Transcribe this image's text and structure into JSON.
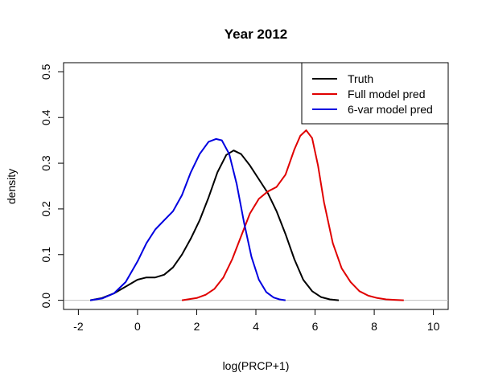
{
  "chart_data": {
    "type": "line",
    "title": "Year 2012",
    "xlabel": "log(PRCP+1)",
    "ylabel": "density",
    "xlim": [
      -2.5,
      10.5
    ],
    "ylim": [
      -0.02,
      0.52
    ],
    "xticks": [
      -2,
      0,
      2,
      4,
      6,
      8,
      10
    ],
    "xtick_labels": [
      "-2",
      "0",
      "2",
      "4",
      "6",
      "8",
      "10"
    ],
    "yticks": [
      0.0,
      0.1,
      0.2,
      0.3,
      0.4,
      0.5
    ],
    "ytick_labels": [
      "0.0",
      "0.1",
      "0.2",
      "0.3",
      "0.4",
      "0.5"
    ],
    "grid": false,
    "baseline": 0,
    "legend_position": "top-right",
    "series": [
      {
        "name": "Truth",
        "color": "#000000",
        "x": [
          -1.6,
          -1.2,
          -0.8,
          -0.4,
          0.0,
          0.3,
          0.6,
          0.9,
          1.2,
          1.5,
          1.8,
          2.1,
          2.4,
          2.7,
          3.0,
          3.25,
          3.5,
          3.8,
          4.1,
          4.4,
          4.7,
          5.0,
          5.3,
          5.6,
          5.9,
          6.2,
          6.5,
          6.8
        ],
        "y": [
          0.0,
          0.005,
          0.015,
          0.03,
          0.045,
          0.05,
          0.05,
          0.056,
          0.072,
          0.1,
          0.135,
          0.175,
          0.225,
          0.28,
          0.318,
          0.328,
          0.32,
          0.295,
          0.265,
          0.235,
          0.195,
          0.145,
          0.09,
          0.045,
          0.02,
          0.007,
          0.002,
          0.0
        ]
      },
      {
        "name": "Full model pred",
        "color": "#e00000",
        "x": [
          1.5,
          2.0,
          2.3,
          2.6,
          2.9,
          3.2,
          3.5,
          3.8,
          4.1,
          4.4,
          4.7,
          5.0,
          5.3,
          5.5,
          5.7,
          5.9,
          6.1,
          6.3,
          6.6,
          6.9,
          7.2,
          7.5,
          7.8,
          8.1,
          8.4,
          8.7,
          9.0
        ],
        "y": [
          0.0,
          0.005,
          0.012,
          0.025,
          0.05,
          0.09,
          0.14,
          0.19,
          0.222,
          0.238,
          0.248,
          0.275,
          0.33,
          0.36,
          0.372,
          0.355,
          0.295,
          0.215,
          0.125,
          0.07,
          0.04,
          0.02,
          0.01,
          0.005,
          0.002,
          0.001,
          0.0
        ]
      },
      {
        "name": "6-var model pred",
        "color": "#0000e0",
        "x": [
          -1.6,
          -1.2,
          -0.8,
          -0.4,
          0.0,
          0.3,
          0.6,
          0.9,
          1.2,
          1.5,
          1.8,
          2.1,
          2.4,
          2.65,
          2.85,
          3.1,
          3.35,
          3.6,
          3.85,
          4.1,
          4.35,
          4.6,
          4.8,
          5.0
        ],
        "y": [
          0.0,
          0.004,
          0.015,
          0.04,
          0.085,
          0.125,
          0.155,
          0.175,
          0.195,
          0.23,
          0.28,
          0.32,
          0.347,
          0.353,
          0.35,
          0.32,
          0.255,
          0.17,
          0.095,
          0.045,
          0.018,
          0.006,
          0.002,
          0.0
        ]
      }
    ]
  }
}
